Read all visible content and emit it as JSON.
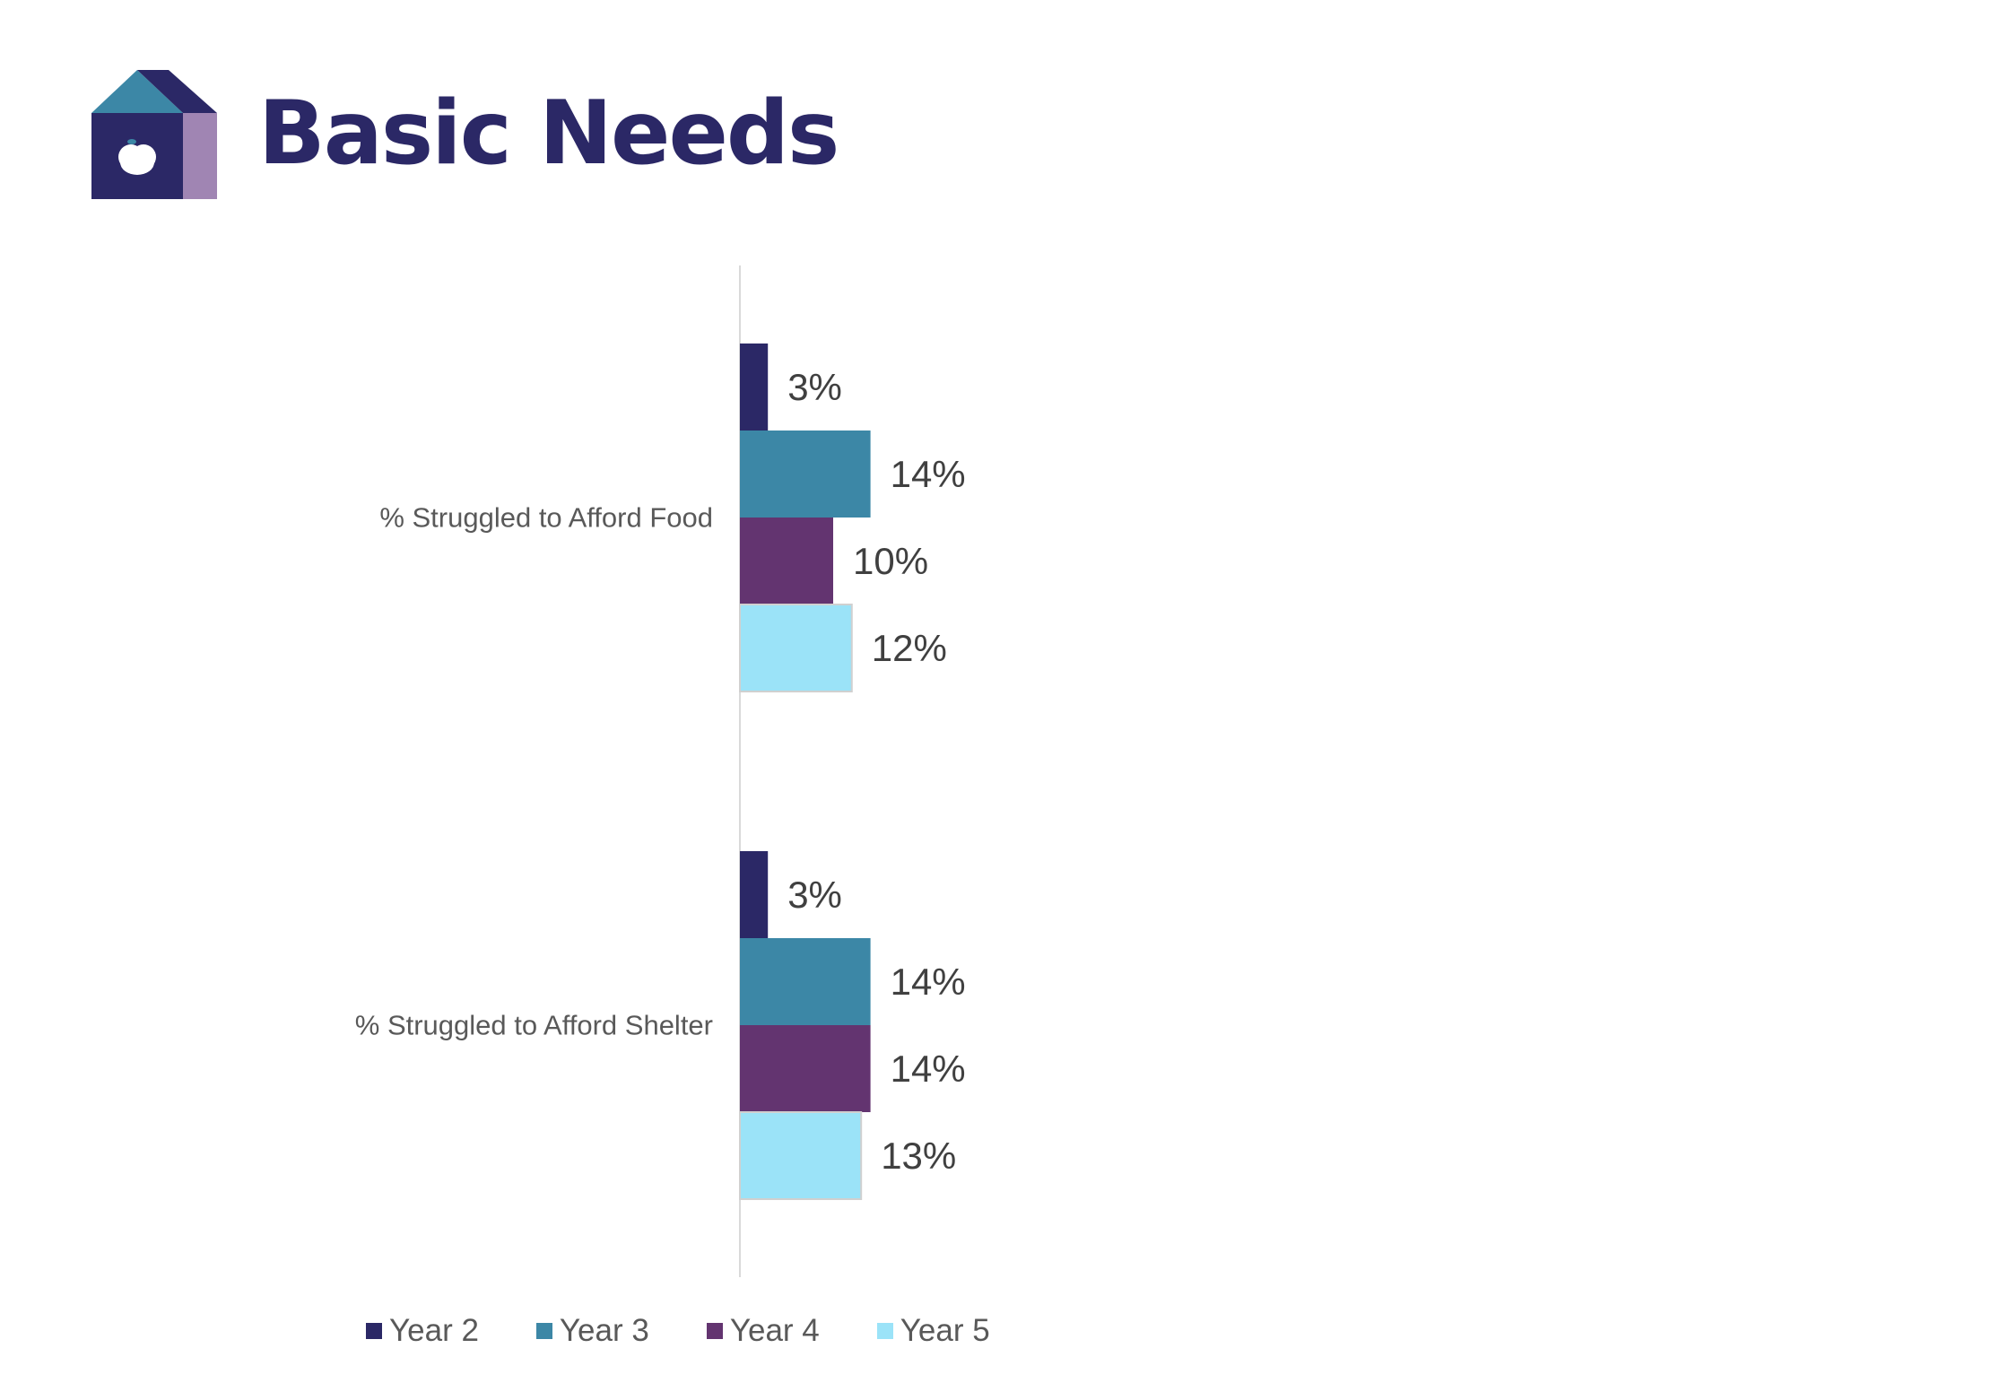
{
  "page": {
    "title": "Basic Needs",
    "logo_icon": "house-apple-icon"
  },
  "colors": {
    "title": "#2b2866",
    "axis": "#d9d9d9",
    "category_label": "#595959",
    "data_label": "#404040"
  },
  "chart_data": {
    "type": "bar",
    "orientation": "horizontal",
    "categories": [
      "% Struggled to Afford Food",
      "% Struggled to Afford Shelter"
    ],
    "series": [
      {
        "name": "Year 2",
        "color": "#2b2866",
        "values": [
          3,
          3
        ],
        "labels": [
          "3%",
          "3%"
        ]
      },
      {
        "name": "Year 3",
        "color": "#3c87a6",
        "values": [
          14,
          14
        ],
        "labels": [
          "14%",
          "14%"
        ]
      },
      {
        "name": "Year 4",
        "color": "#633470",
        "values": [
          10,
          14
        ],
        "labels": [
          "10%",
          "14%"
        ]
      },
      {
        "name": "Year 5",
        "color": "#9be3f8",
        "values": [
          12,
          13
        ],
        "labels": [
          "12%",
          "13%"
        ]
      }
    ],
    "xlim": [
      0,
      100
    ],
    "unit": "%",
    "grid": false,
    "legend_position": "bottom"
  }
}
